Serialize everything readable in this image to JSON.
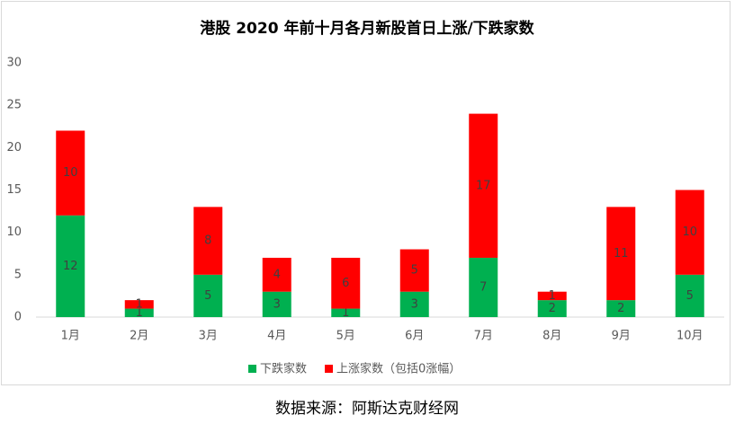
{
  "chart_data": {
    "type": "stacked_bar",
    "title": "港股 2020 年前十月各月新股首日上涨/下跌家数",
    "categories": [
      "1月",
      "2月",
      "3月",
      "4月",
      "5月",
      "6月",
      "7月",
      "8月",
      "9月",
      "10月"
    ],
    "series": [
      {
        "name": "下跌家数",
        "color": "#00b050",
        "values": [
          12,
          1,
          5,
          3,
          1,
          3,
          7,
          2,
          2,
          5
        ]
      },
      {
        "name": "上涨家数（包括0涨幅）",
        "color": "#ff0000",
        "values": [
          10,
          1,
          8,
          4,
          6,
          5,
          17,
          1,
          11,
          10
        ]
      }
    ],
    "ylim": [
      0,
      30
    ],
    "yticks": [
      0,
      5,
      10,
      15,
      20,
      25,
      30
    ],
    "grid": false,
    "legend": "bottom"
  },
  "source": "数据来源：阿斯达克财经网"
}
